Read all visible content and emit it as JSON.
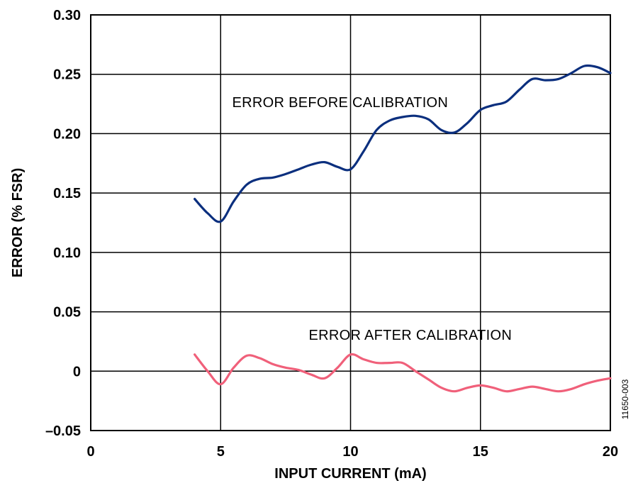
{
  "chart_data": {
    "type": "line",
    "xlabel": "INPUT CURRENT (mA)",
    "ylabel": "ERROR (% FSR)",
    "xlim": [
      0,
      20
    ],
    "ylim": [
      -0.05,
      0.3
    ],
    "x_ticks": [
      0,
      5,
      10,
      15,
      20
    ],
    "x_tick_labels": [
      "0",
      "5",
      "10",
      "15",
      "20"
    ],
    "y_ticks": [
      -0.05,
      0,
      0.05,
      0.1,
      0.15,
      0.2,
      0.25,
      0.3
    ],
    "y_tick_labels": [
      "–0.05",
      "0",
      "0.05",
      "0.10",
      "0.15",
      "0.20",
      "0.25",
      "0.30"
    ],
    "grid": true,
    "series": [
      {
        "label": "ERROR BEFORE CALIBRATION",
        "color": "#0b2f7e",
        "x": [
          4,
          4.5,
          5,
          5.5,
          6,
          6.5,
          7,
          7.5,
          8,
          8.5,
          9,
          9.5,
          10,
          10.5,
          11,
          11.5,
          12,
          12.5,
          13,
          13.5,
          14,
          14.5,
          15,
          15.5,
          16,
          16.5,
          17,
          17.5,
          18,
          18.5,
          19,
          19.5,
          20
        ],
        "y": [
          0.145,
          0.133,
          0.126,
          0.143,
          0.157,
          0.162,
          0.163,
          0.166,
          0.17,
          0.174,
          0.176,
          0.172,
          0.17,
          0.185,
          0.203,
          0.211,
          0.214,
          0.215,
          0.212,
          0.203,
          0.201,
          0.209,
          0.22,
          0.224,
          0.227,
          0.237,
          0.246,
          0.245,
          0.246,
          0.251,
          0.257,
          0.256,
          0.251
        ]
      },
      {
        "label": "ERROR AFTER CALIBRATION",
        "color": "#f0607a",
        "x": [
          4,
          4.5,
          5,
          5.5,
          6,
          6.5,
          7,
          7.5,
          8,
          8.5,
          9,
          9.5,
          10,
          10.5,
          11,
          11.5,
          12,
          12.5,
          13,
          13.5,
          14,
          14.5,
          15,
          15.5,
          16,
          16.5,
          17,
          17.5,
          18,
          18.5,
          19,
          19.5,
          20
        ],
        "y": [
          0.014,
          0.0,
          -0.011,
          0.003,
          0.013,
          0.011,
          0.006,
          0.003,
          0.001,
          -0.003,
          -0.006,
          0.003,
          0.014,
          0.01,
          0.007,
          0.007,
          0.007,
          0.0,
          -0.007,
          -0.014,
          -0.017,
          -0.014,
          -0.012,
          -0.014,
          -0.017,
          -0.015,
          -0.013,
          -0.015,
          -0.017,
          -0.015,
          -0.011,
          -0.008,
          -0.006
        ]
      }
    ],
    "annotations": [
      {
        "text": "ERROR BEFORE CALIBRATION",
        "x": 9.6,
        "y": 0.2265
      },
      {
        "text": "ERROR AFTER CALIBRATION",
        "x": 12.3,
        "y": 0.0305
      }
    ],
    "figure_id": "11650-003"
  }
}
